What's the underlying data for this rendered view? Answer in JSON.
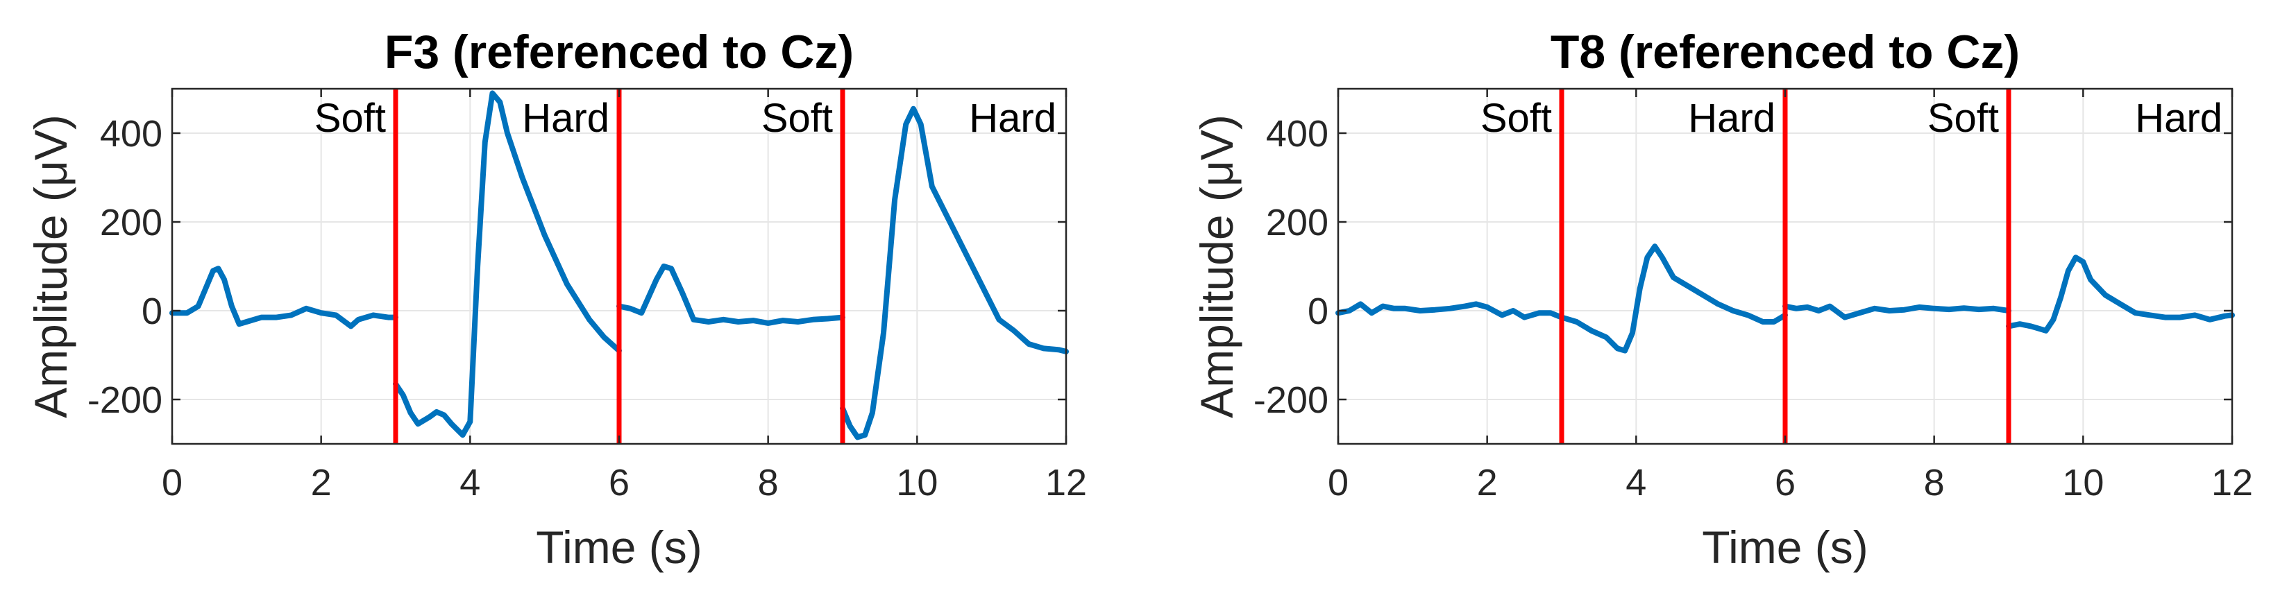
{
  "chart_data": [
    {
      "type": "line",
      "title": "F3 (referenced to Cz)",
      "xlabel": "Time (s)",
      "ylabel": "Amplitude (μV)",
      "xlim": [
        0,
        12
      ],
      "ylim": [
        -300,
        500
      ],
      "xticks": [
        0,
        2,
        4,
        6,
        8,
        10,
        12
      ],
      "yticks": [
        -200,
        0,
        200,
        400
      ],
      "grid": true,
      "colors": {
        "series": "#0072BD",
        "marker": "#FF0000"
      },
      "vlines": [
        3,
        6,
        9
      ],
      "regions": [
        {
          "label": "Soft",
          "x_end": 3
        },
        {
          "label": "Hard",
          "x_end": 6
        },
        {
          "label": "Soft",
          "x_end": 9
        },
        {
          "label": "Hard",
          "x_end": 12
        }
      ],
      "series": [
        {
          "segments": [
            {
              "x": [
                0,
                0.2,
                0.35,
                0.45,
                0.55,
                0.62,
                0.7,
                0.8,
                0.9,
                1.0,
                1.2,
                1.4,
                1.6,
                1.8,
                2.0,
                2.2,
                2.4,
                2.5,
                2.7,
                2.9,
                3.0
              ],
              "y": [
                -5,
                -5,
                10,
                50,
                90,
                95,
                70,
                10,
                -30,
                -25,
                -15,
                -15,
                -10,
                5,
                -5,
                -10,
                -35,
                -20,
                -10,
                -15,
                -15
              ]
            },
            {
              "x": [
                3.0,
                3.1,
                3.2,
                3.3,
                3.45,
                3.55,
                3.65,
                3.75,
                3.9,
                4.0,
                4.1,
                4.2,
                4.3,
                4.4,
                4.5,
                4.7,
                5.0,
                5.3,
                5.6,
                5.8,
                6.0
              ],
              "y": [
                -165,
                -190,
                -230,
                -255,
                -240,
                -228,
                -235,
                -255,
                -280,
                -250,
                100,
                380,
                490,
                470,
                400,
                300,
                170,
                60,
                -20,
                -60,
                -90
              ]
            },
            {
              "x": [
                6.0,
                6.15,
                6.3,
                6.5,
                6.6,
                6.7,
                6.85,
                7.0,
                7.2,
                7.4,
                7.6,
                7.8,
                8.0,
                8.2,
                8.4,
                8.6,
                8.8,
                9.0
              ],
              "y": [
                10,
                5,
                -5,
                70,
                100,
                95,
                40,
                -20,
                -25,
                -20,
                -25,
                -22,
                -28,
                -22,
                -25,
                -20,
                -18,
                -15
              ]
            },
            {
              "x": [
                9.0,
                9.1,
                9.2,
                9.3,
                9.4,
                9.55,
                9.7,
                9.85,
                9.95,
                10.05,
                10.2,
                10.5,
                10.8,
                11.1,
                11.3,
                11.5,
                11.7,
                11.9,
                12.0
              ],
              "y": [
                -220,
                -260,
                -285,
                -280,
                -230,
                -50,
                250,
                420,
                455,
                420,
                280,
                180,
                80,
                -20,
                -45,
                -75,
                -85,
                -88,
                -92
              ]
            }
          ]
        }
      ]
    },
    {
      "type": "line",
      "title": "T8 (referenced to Cz)",
      "xlabel": "Time (s)",
      "ylabel": "Amplitude (μV)",
      "xlim": [
        0,
        12
      ],
      "ylim": [
        -300,
        500
      ],
      "xticks": [
        0,
        2,
        4,
        6,
        8,
        10,
        12
      ],
      "yticks": [
        -200,
        0,
        200,
        400
      ],
      "grid": true,
      "colors": {
        "series": "#0072BD",
        "marker": "#FF0000"
      },
      "vlines": [
        3,
        6,
        9
      ],
      "regions": [
        {
          "label": "Soft",
          "x_end": 3
        },
        {
          "label": "Hard",
          "x_end": 6
        },
        {
          "label": "Soft",
          "x_end": 9
        },
        {
          "label": "Hard",
          "x_end": 12
        }
      ],
      "series": [
        {
          "segments": [
            {
              "x": [
                0,
                0.15,
                0.3,
                0.45,
                0.6,
                0.75,
                0.9,
                1.1,
                1.3,
                1.5,
                1.7,
                1.85,
                2.0,
                2.2,
                2.35,
                2.5,
                2.7,
                2.85,
                3.0
              ],
              "y": [
                -5,
                0,
                15,
                -5,
                10,
                5,
                5,
                0,
                2,
                5,
                10,
                15,
                8,
                -10,
                0,
                -15,
                -5,
                -5,
                -15
              ]
            },
            {
              "x": [
                3.0,
                3.2,
                3.4,
                3.6,
                3.75,
                3.85,
                3.95,
                4.05,
                4.15,
                4.25,
                4.35,
                4.5,
                4.7,
                4.9,
                5.1,
                5.3,
                5.5,
                5.7,
                5.85,
                6.0
              ],
              "y": [
                -15,
                -25,
                -45,
                -60,
                -85,
                -90,
                -50,
                50,
                120,
                145,
                120,
                75,
                55,
                35,
                15,
                0,
                -10,
                -25,
                -25,
                -10
              ]
            },
            {
              "x": [
                6.0,
                6.15,
                6.3,
                6.45,
                6.6,
                6.8,
                7.0,
                7.2,
                7.4,
                7.6,
                7.8,
                8.0,
                8.2,
                8.4,
                8.6,
                8.8,
                9.0
              ],
              "y": [
                10,
                5,
                8,
                0,
                10,
                -15,
                -5,
                5,
                0,
                2,
                8,
                5,
                3,
                6,
                3,
                5,
                0
              ]
            },
            {
              "x": [
                9.0,
                9.15,
                9.3,
                9.4,
                9.5,
                9.6,
                9.7,
                9.8,
                9.9,
                10.0,
                10.1,
                10.3,
                10.5,
                10.7,
                10.9,
                11.1,
                11.3,
                11.5,
                11.7,
                11.9,
                12.0
              ],
              "y": [
                -35,
                -30,
                -35,
                -40,
                -45,
                -20,
                30,
                90,
                120,
                110,
                70,
                35,
                15,
                -5,
                -10,
                -15,
                -15,
                -10,
                -20,
                -12,
                -10
              ]
            }
          ]
        }
      ]
    }
  ]
}
